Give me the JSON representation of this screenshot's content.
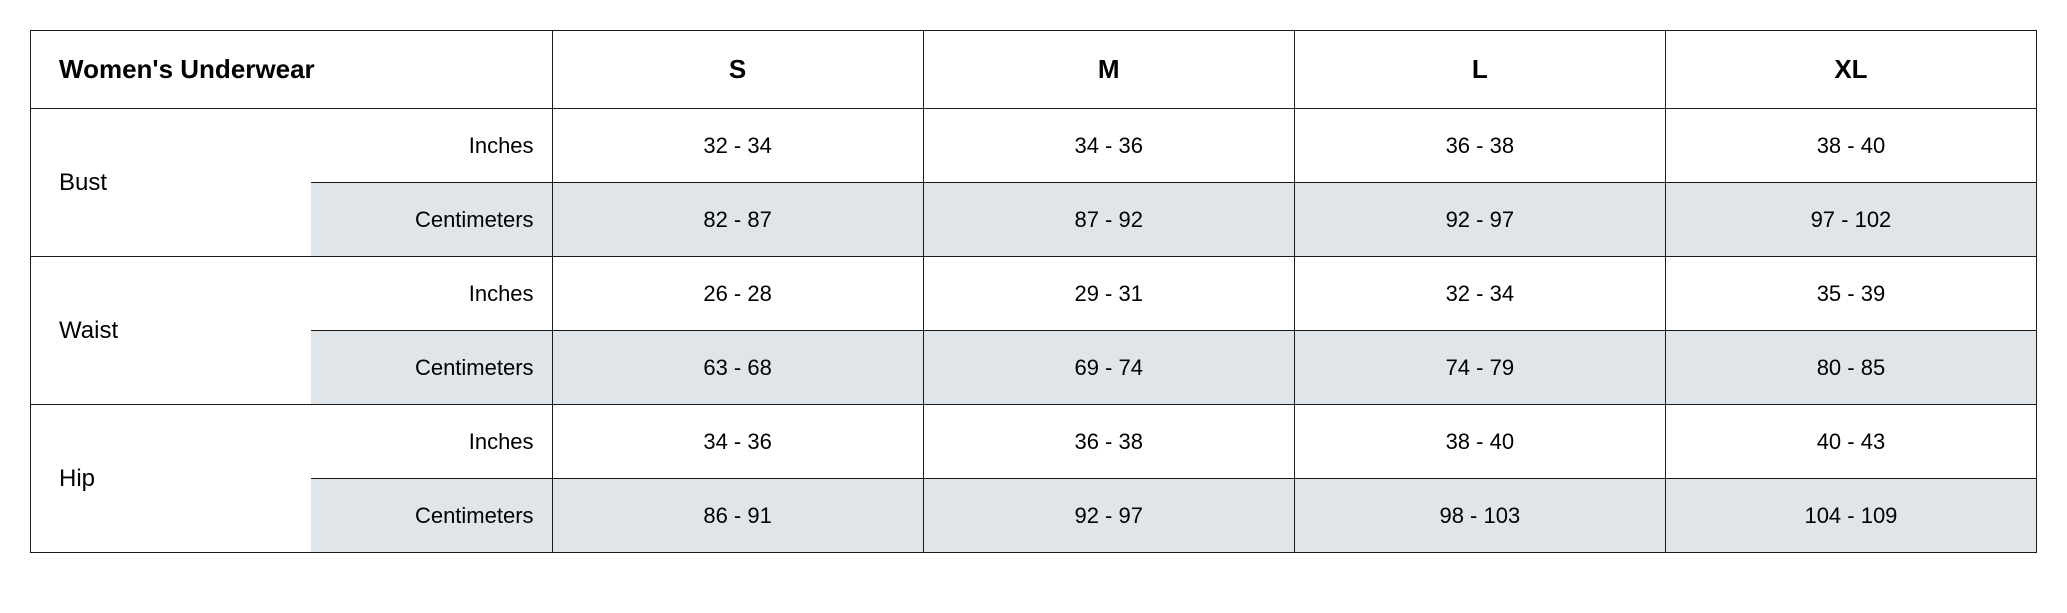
{
  "table": {
    "title": "Women's Underwear",
    "sizes": [
      "S",
      "M",
      "L",
      "XL"
    ],
    "unit_labels": {
      "inches": "Inches",
      "centimeters": "Centimeters"
    },
    "colors": {
      "shaded_bg": "#dfe5e8",
      "border": "#1a1a1a",
      "text": "#000000",
      "background": "#ffffff"
    },
    "measurements": [
      {
        "name": "Bust",
        "inches": [
          "32 - 34",
          "34 - 36",
          "36 - 38",
          "38 - 40"
        ],
        "centimeters": [
          "82 - 87",
          "87 - 92",
          "92 - 97",
          "97 - 102"
        ]
      },
      {
        "name": "Waist",
        "inches": [
          "26 - 28",
          "29 - 31",
          "32 - 34",
          "35 - 39"
        ],
        "centimeters": [
          "63 - 68",
          "69 - 74",
          "74 - 79",
          "80 - 85"
        ]
      },
      {
        "name": "Hip",
        "inches": [
          "34 - 36",
          "36 - 38",
          "38 - 40",
          "40 - 43"
        ],
        "centimeters": [
          "86 - 91",
          "92 - 97",
          "98 - 103",
          "104 - 109"
        ]
      }
    ]
  }
}
